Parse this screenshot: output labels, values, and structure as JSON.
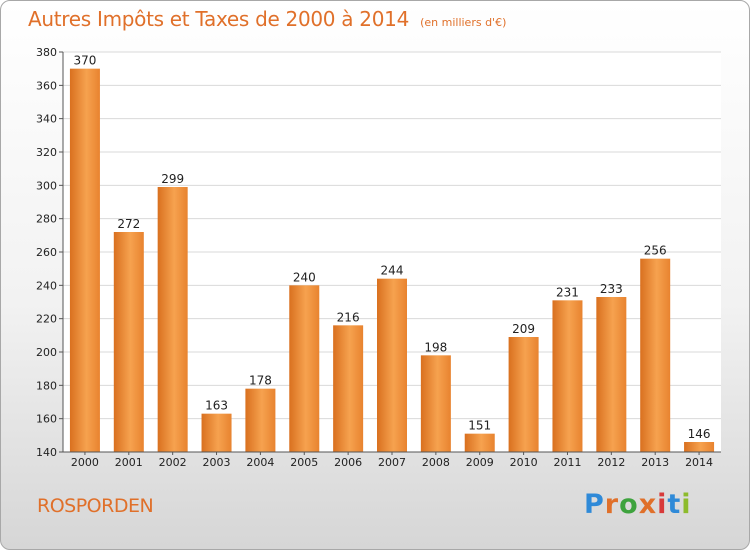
{
  "title": "Autres Impôts et Taxes de 2000 à 2014",
  "subtitle": "(en milliers d'€)",
  "commune": "ROSPORDEN",
  "logo": {
    "letters": [
      "P",
      "r",
      "o",
      "x",
      "i",
      "t",
      "i"
    ],
    "colors": [
      "#2f8ad8",
      "#e0702a",
      "#3ea33e",
      "#e0702a",
      "#d83a3a",
      "#2f8ad8",
      "#8dbb2c"
    ]
  },
  "chart_data": {
    "type": "bar",
    "categories": [
      "2000",
      "2001",
      "2002",
      "2003",
      "2004",
      "2005",
      "2006",
      "2007",
      "2008",
      "2009",
      "2010",
      "2011",
      "2012",
      "2013",
      "2014"
    ],
    "values": [
      370,
      272,
      299,
      163,
      178,
      240,
      216,
      244,
      198,
      151,
      209,
      231,
      233,
      256,
      146
    ],
    "ylim": [
      140,
      380
    ],
    "yticks": [
      140,
      160,
      180,
      200,
      220,
      240,
      260,
      280,
      300,
      320,
      340,
      360,
      380
    ],
    "grid": true,
    "bar_color": "#e8832f"
  }
}
